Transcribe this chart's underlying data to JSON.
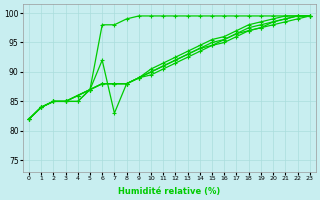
{
  "title": "",
  "xlabel": "Humidité relative (%)",
  "ylabel": "",
  "xlim": [
    -0.5,
    23.5
  ],
  "ylim": [
    73,
    101.5
  ],
  "yticks": [
    75,
    80,
    85,
    90,
    95,
    100
  ],
  "xticks": [
    0,
    1,
    2,
    3,
    4,
    5,
    6,
    7,
    8,
    9,
    10,
    11,
    12,
    13,
    14,
    15,
    16,
    17,
    18,
    19,
    20,
    21,
    22,
    23
  ],
  "background_color": "#c8eef0",
  "grid_color": "#aadddd",
  "line_color": "#00cc00",
  "lines": [
    {
      "x": [
        0,
        1,
        2,
        3,
        4,
        5,
        6,
        7,
        8,
        9,
        10,
        11,
        12,
        13,
        14,
        15,
        16,
        17,
        18,
        19,
        20,
        21,
        22,
        23
      ],
      "y": [
        82,
        84,
        85,
        85,
        85,
        87,
        98,
        98,
        99,
        99.5,
        99.5,
        99.5,
        99.5,
        99.5,
        99.5,
        99.5,
        99.5,
        99.5,
        99.5,
        99.5,
        99.5,
        99.5,
        99.5,
        99.5
      ]
    },
    {
      "x": [
        0,
        1,
        2,
        3,
        4,
        5,
        6,
        7,
        8,
        9,
        10,
        11,
        12,
        13,
        14,
        15,
        16,
        17,
        18,
        19,
        20,
        21,
        22,
        23
      ],
      "y": [
        82,
        84,
        85,
        85,
        85,
        87,
        92,
        83,
        88,
        89,
        90,
        91,
        92,
        93,
        94,
        94.5,
        95.5,
        96.5,
        97,
        97.5,
        98.5,
        99,
        99.5,
        99.5
      ]
    },
    {
      "x": [
        0,
        1,
        2,
        3,
        4,
        5,
        6,
        7,
        8,
        9,
        10,
        11,
        12,
        13,
        14,
        15,
        16,
        17,
        18,
        19,
        20,
        21,
        22,
        23
      ],
      "y": [
        82,
        84,
        85,
        85,
        86,
        87,
        88,
        88,
        88,
        89,
        89.5,
        90.5,
        91.5,
        92.5,
        93.5,
        94.5,
        95,
        96,
        97,
        97.5,
        98,
        98.5,
        99,
        99.5
      ]
    },
    {
      "x": [
        0,
        1,
        2,
        3,
        4,
        5,
        6,
        7,
        8,
        9,
        10,
        11,
        12,
        13,
        14,
        15,
        16,
        17,
        18,
        19,
        20,
        21,
        22,
        23
      ],
      "y": [
        82,
        84,
        85,
        85,
        86,
        87,
        88,
        88,
        88,
        89,
        90,
        91,
        92,
        93,
        94,
        95,
        95.5,
        96.5,
        97.5,
        98,
        98.5,
        99,
        99.5,
        99.5
      ]
    },
    {
      "x": [
        0,
        1,
        2,
        3,
        4,
        5,
        6,
        7,
        8,
        9,
        10,
        11,
        12,
        13,
        14,
        15,
        16,
        17,
        18,
        19,
        20,
        21,
        22,
        23
      ],
      "y": [
        82,
        84,
        85,
        85,
        86,
        87,
        88,
        88,
        88,
        89,
        90.5,
        91.5,
        92.5,
        93.5,
        94.5,
        95.5,
        96,
        97,
        98,
        98.5,
        99,
        99.5,
        99.5,
        99.5
      ]
    }
  ]
}
